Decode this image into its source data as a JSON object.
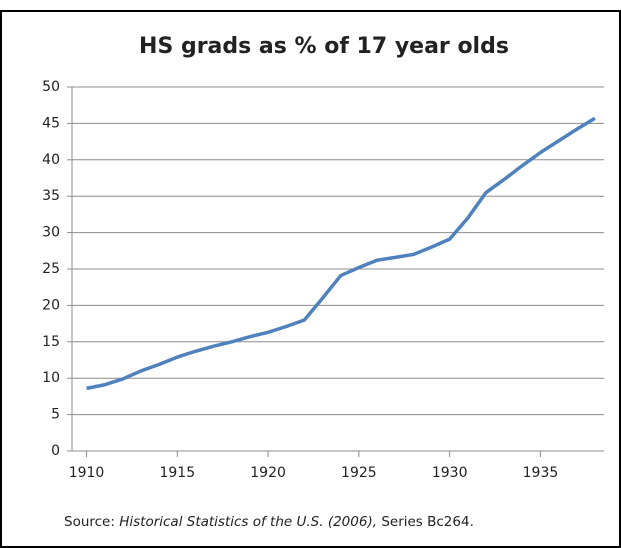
{
  "chart_data": {
    "type": "line",
    "title": "HS grads as % of 17 year olds",
    "x": [
      1910,
      1911,
      1912,
      1913,
      1914,
      1915,
      1916,
      1917,
      1918,
      1919,
      1920,
      1921,
      1922,
      1923,
      1924,
      1925,
      1926,
      1927,
      1928,
      1929,
      1930,
      1931,
      1932,
      1933,
      1934,
      1935,
      1936,
      1937,
      1938
    ],
    "series": [
      {
        "name": "HS grads as % of 17 year olds",
        "color": "#4f81bd",
        "values": [
          8.6,
          9.1,
          9.9,
          11.0,
          11.9,
          12.9,
          13.7,
          14.4,
          15.0,
          15.7,
          16.3,
          17.1,
          18.0,
          21.0,
          24.1,
          25.2,
          26.2,
          26.6,
          27.0,
          28.0,
          29.1,
          32.0,
          35.5,
          37.3,
          39.2,
          41.0,
          42.6,
          44.2,
          45.7
        ]
      }
    ],
    "xlim": [
      1909.2,
      1938.5
    ],
    "xticks": [
      1910,
      1915,
      1920,
      1925,
      1930,
      1935
    ],
    "ylim": [
      0,
      50
    ],
    "yticks": [
      0,
      5,
      10,
      15,
      20,
      25,
      30,
      35,
      40,
      45,
      50
    ],
    "grid": true,
    "source": {
      "prefix": "Source:",
      "title": "Historical Statistics of the U.S. (2006),",
      "suffix": "Series Bc264."
    }
  }
}
